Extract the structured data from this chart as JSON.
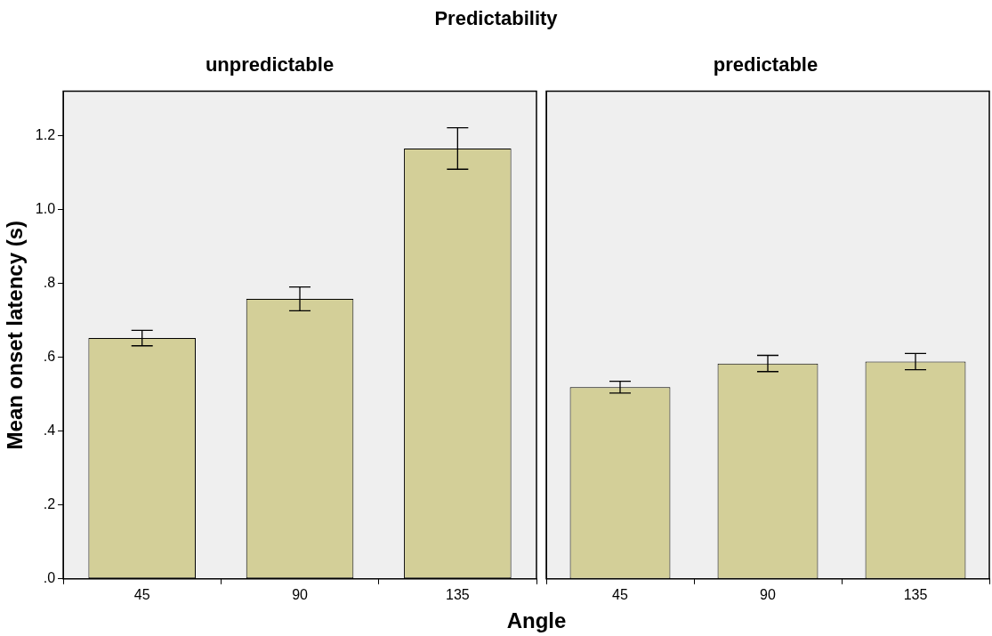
{
  "chart_data": [
    {
      "type": "bar",
      "title": "Predictability",
      "subtitle": "unpredictable",
      "xlabel": "Angle",
      "ylabel": "Mean onset latency (s)",
      "categories": [
        "45",
        "90",
        "135"
      ],
      "series": [
        {
          "color": "#d3cf98",
          "values": [
            0.652,
            0.758,
            1.165
          ],
          "errors": [
            0.021,
            0.032,
            0.056
          ]
        }
      ],
      "ylim": [
        0,
        1.32
      ],
      "yticks": [
        {
          "value": 0,
          "label": ".0"
        },
        {
          "value": 0.2,
          "label": ".2"
        },
        {
          "value": 0.4,
          "label": ".4"
        },
        {
          "value": 0.6,
          "label": ".6"
        },
        {
          "value": 0.8,
          "label": ".8"
        },
        {
          "value": 1.0,
          "label": "1.0"
        },
        {
          "value": 1.2,
          "label": "1.2"
        }
      ]
    },
    {
      "type": "bar",
      "subtitle": "predictable",
      "categories": [
        "45",
        "90",
        "135"
      ],
      "series": [
        {
          "color": "#d3cf98",
          "values": [
            0.519,
            0.583,
            0.588
          ],
          "errors": [
            0.016,
            0.022,
            0.022
          ]
        }
      ],
      "ylim": [
        0,
        1.32
      ],
      "tick_labels": "x"
    }
  ]
}
